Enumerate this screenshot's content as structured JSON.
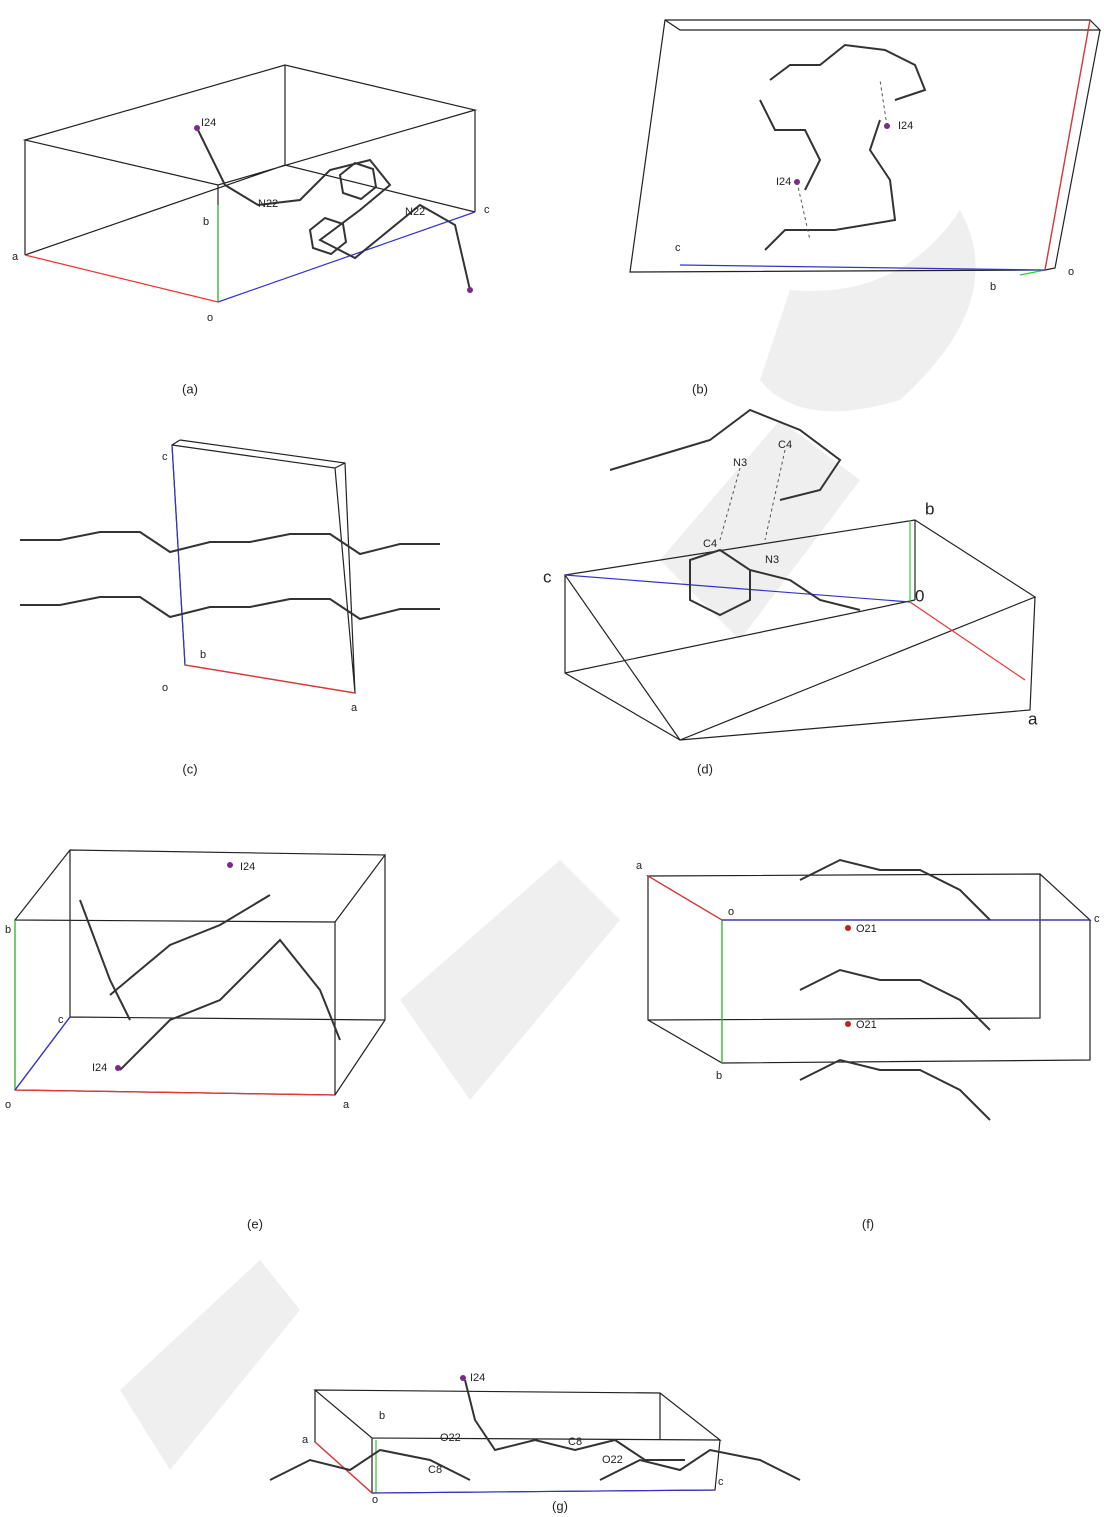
{
  "panels": [
    {
      "caption": "(a)",
      "labels": [
        "I24",
        "N22",
        "N22",
        "a",
        "b",
        "c",
        "o"
      ]
    },
    {
      "caption": "(b)",
      "labels": [
        "I24",
        "I24",
        "c",
        "b",
        "o"
      ]
    },
    {
      "caption": "(c)",
      "labels": [
        "c",
        "b",
        "o",
        "a"
      ]
    },
    {
      "caption": "(d)",
      "labels": [
        "N3",
        "C4",
        "C4",
        "N3",
        "b",
        "0",
        "c",
        "a"
      ]
    },
    {
      "caption": "(e)",
      "labels": [
        "I24",
        "I24",
        "b",
        "c",
        "o",
        "a"
      ]
    },
    {
      "caption": "(f)",
      "labels": [
        "a",
        "o",
        "c",
        "O21",
        "O21",
        "b"
      ]
    },
    {
      "caption": "(g)",
      "labels": [
        "I24",
        "b",
        "a",
        "O22",
        "C8",
        "C8",
        "O22",
        "o",
        "c"
      ]
    }
  ]
}
